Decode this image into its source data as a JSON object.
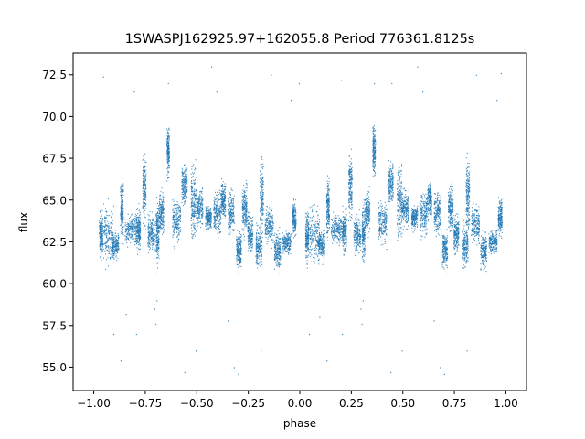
{
  "chart_data": {
    "type": "scatter",
    "title": "1SWASPJ162925.97+162055.8 Period 776361.8125s",
    "xlabel": "phase",
    "ylabel": "flux",
    "xlim": [
      -1.1,
      1.1
    ],
    "ylim": [
      53.6,
      73.8
    ],
    "x_ticks": [
      -1.0,
      -0.75,
      -0.5,
      -0.25,
      0.0,
      0.25,
      0.5,
      0.75,
      1.0
    ],
    "x_tick_labels": [
      "−1.00",
      "−0.75",
      "−0.50",
      "−0.25",
      "0.00",
      "0.25",
      "0.50",
      "0.75",
      "1.00"
    ],
    "y_ticks": [
      55.0,
      57.5,
      60.0,
      62.5,
      65.0,
      67.5,
      70.0,
      72.5
    ],
    "y_tick_labels": [
      "55.0",
      "57.5",
      "60.0",
      "62.5",
      "65.0",
      "67.5",
      "70.0",
      "72.5"
    ],
    "grid": false,
    "legend": "none",
    "color": "#1f77b4",
    "series": [
      {
        "segments": [
          {
            "x": [
              -0.975,
              -0.958
            ],
            "y": [
              60.8,
              65.0
            ]
          },
          {
            "x": [
              -0.955,
              -0.905
            ],
            "y": [
              60.5,
              65.5
            ]
          },
          {
            "x": [
              -0.915,
              -0.88
            ],
            "y": [
              61.2,
              63.5
            ]
          },
          {
            "x": [
              -0.872,
              -0.858
            ],
            "y": [
              62.0,
              67.0
            ]
          },
          {
            "x": [
              -0.85,
              -0.795
            ],
            "y": [
              62.0,
              64.5
            ]
          },
          {
            "x": [
              -0.795,
              -0.775
            ],
            "y": [
              61.5,
              65.0
            ]
          },
          {
            "x": [
              -0.765,
              -0.748
            ],
            "y": [
              63.0,
              68.5
            ]
          },
          {
            "x": [
              -0.74,
              -0.705
            ],
            "y": [
              61.5,
              64.5
            ]
          },
          {
            "x": [
              -0.7,
              -0.685
            ],
            "y": [
              60.5,
              65.5
            ]
          },
          {
            "x": [
              -0.685,
              -0.662
            ],
            "y": [
              62.5,
              66.0
            ]
          },
          {
            "x": [
              -0.648,
              -0.635
            ],
            "y": [
              66.0,
              70.0
            ]
          },
          {
            "x": [
              -0.62,
              -0.58
            ],
            "y": [
              62.0,
              65.5
            ]
          },
          {
            "x": [
              -0.575,
              -0.548
            ],
            "y": [
              64.5,
              67.5
            ]
          },
          {
            "x": [
              -0.53,
              -0.505
            ],
            "y": [
              62.0,
              68.0
            ]
          },
          {
            "x": [
              -0.505,
              -0.472
            ],
            "y": [
              63.0,
              66.0
            ]
          },
          {
            "x": [
              -0.46,
              -0.43
            ],
            "y": [
              63.0,
              65.0
            ]
          },
          {
            "x": [
              -0.42,
              -0.385
            ],
            "y": [
              62.5,
              66.0
            ]
          },
          {
            "x": [
              -0.385,
              -0.362
            ],
            "y": [
              63.5,
              66.5
            ]
          },
          {
            "x": [
              -0.35,
              -0.32
            ],
            "y": [
              62.5,
              66.0
            ]
          },
          {
            "x": [
              -0.31,
              -0.285
            ],
            "y": [
              60.5,
              63.5
            ]
          },
          {
            "x": [
              -0.282,
              -0.258
            ],
            "y": [
              62.5,
              66.5
            ]
          },
          {
            "x": [
              -0.255,
              -0.23
            ],
            "y": [
              61.5,
              64.5
            ]
          },
          {
            "x": [
              -0.215,
              -0.185
            ],
            "y": [
              60.5,
              64.0
            ]
          },
          {
            "x": [
              -0.195,
              -0.178
            ],
            "y": [
              62.0,
              68.5
            ]
          },
          {
            "x": [
              -0.17,
              -0.13
            ],
            "y": [
              62.0,
              65.0
            ]
          },
          {
            "x": [
              -0.125,
              -0.095
            ],
            "y": [
              60.5,
              63.5
            ]
          },
          {
            "x": [
              -0.085,
              -0.045
            ],
            "y": [
              61.5,
              63.5
            ]
          },
          {
            "x": [
              -0.04,
              -0.02
            ],
            "y": [
              62.5,
              65.5
            ]
          },
          {
            "x": [
              0.025,
              0.042
            ],
            "y": [
              60.8,
              65.0
            ]
          },
          {
            "x": [
              0.045,
              0.095
            ],
            "y": [
              60.5,
              65.5
            ]
          },
          {
            "x": [
              0.085,
              0.12
            ],
            "y": [
              61.2,
              63.5
            ]
          },
          {
            "x": [
              0.128,
              0.142
            ],
            "y": [
              62.0,
              67.0
            ]
          },
          {
            "x": [
              0.15,
              0.205
            ],
            "y": [
              62.0,
              64.5
            ]
          },
          {
            "x": [
              0.205,
              0.225
            ],
            "y": [
              61.5,
              65.0
            ]
          },
          {
            "x": [
              0.235,
              0.252
            ],
            "y": [
              63.0,
              68.5
            ]
          },
          {
            "x": [
              0.26,
              0.295
            ],
            "y": [
              61.5,
              64.5
            ]
          },
          {
            "x": [
              0.3,
              0.315
            ],
            "y": [
              60.5,
              65.5
            ]
          },
          {
            "x": [
              0.315,
              0.338
            ],
            "y": [
              62.5,
              66.0
            ]
          },
          {
            "x": [
              0.352,
              0.365
            ],
            "y": [
              66.0,
              70.0
            ]
          },
          {
            "x": [
              0.38,
              0.42
            ],
            "y": [
              62.0,
              65.5
            ]
          },
          {
            "x": [
              0.425,
              0.452
            ],
            "y": [
              64.5,
              67.5
            ]
          },
          {
            "x": [
              0.47,
              0.495
            ],
            "y": [
              62.0,
              68.0
            ]
          },
          {
            "x": [
              0.495,
              0.528
            ],
            "y": [
              63.0,
              66.0
            ]
          },
          {
            "x": [
              0.54,
              0.57
            ],
            "y": [
              63.0,
              65.0
            ]
          },
          {
            "x": [
              0.58,
              0.615
            ],
            "y": [
              62.5,
              66.0
            ]
          },
          {
            "x": [
              0.615,
              0.638
            ],
            "y": [
              63.5,
              66.5
            ]
          },
          {
            "x": [
              0.65,
              0.68
            ],
            "y": [
              62.5,
              66.0
            ]
          },
          {
            "x": [
              0.69,
              0.715
            ],
            "y": [
              60.5,
              63.5
            ]
          },
          {
            "x": [
              0.718,
              0.742
            ],
            "y": [
              62.5,
              66.5
            ]
          },
          {
            "x": [
              0.745,
              0.77
            ],
            "y": [
              61.5,
              64.5
            ]
          },
          {
            "x": [
              0.785,
              0.815
            ],
            "y": [
              60.5,
              64.0
            ]
          },
          {
            "x": [
              0.805,
              0.822
            ],
            "y": [
              62.0,
              68.5
            ]
          },
          {
            "x": [
              0.83,
              0.87
            ],
            "y": [
              62.0,
              65.0
            ]
          },
          {
            "x": [
              0.875,
              0.905
            ],
            "y": [
              60.5,
              63.5
            ]
          },
          {
            "x": [
              0.915,
              0.955
            ],
            "y": [
              61.5,
              63.5
            ]
          },
          {
            "x": [
              0.96,
              0.98
            ],
            "y": [
              62.5,
              65.5
            ]
          }
        ],
        "points": [
          {
            "x": -0.955,
            "y": 72.4
          },
          {
            "x": -0.905,
            "y": 57.0
          },
          {
            "x": -0.845,
            "y": 58.2
          },
          {
            "x": -0.805,
            "y": 71.5
          },
          {
            "x": -0.795,
            "y": 57.0
          },
          {
            "x": -0.705,
            "y": 58.5
          },
          {
            "x": -0.7,
            "y": 57.6
          },
          {
            "x": -0.695,
            "y": 59.0
          },
          {
            "x": -0.64,
            "y": 72.0
          },
          {
            "x": -0.555,
            "y": 72.0
          },
          {
            "x": -0.505,
            "y": 56.0
          },
          {
            "x": -0.43,
            "y": 73.0
          },
          {
            "x": -0.405,
            "y": 71.5
          },
          {
            "x": -0.35,
            "y": 57.8
          },
          {
            "x": -0.32,
            "y": 55.0
          },
          {
            "x": -0.19,
            "y": 56.0
          },
          {
            "x": -0.14,
            "y": 72.5
          },
          {
            "x": -0.045,
            "y": 71.0
          },
          {
            "x": -0.005,
            "y": 72.0
          },
          {
            "x": 0.045,
            "y": 57.0
          },
          {
            "x": 0.095,
            "y": 58.0
          },
          {
            "x": 0.2,
            "y": 72.2
          },
          {
            "x": 0.205,
            "y": 57.0
          },
          {
            "x": 0.295,
            "y": 58.5
          },
          {
            "x": 0.3,
            "y": 57.6
          },
          {
            "x": 0.305,
            "y": 59.0
          },
          {
            "x": 0.36,
            "y": 72.0
          },
          {
            "x": 0.445,
            "y": 72.0
          },
          {
            "x": 0.495,
            "y": 56.0
          },
          {
            "x": 0.57,
            "y": 73.0
          },
          {
            "x": 0.595,
            "y": 71.5
          },
          {
            "x": 0.65,
            "y": 57.8
          },
          {
            "x": 0.68,
            "y": 55.0
          },
          {
            "x": 0.81,
            "y": 56.0
          },
          {
            "x": 0.855,
            "y": 72.5
          },
          {
            "x": 0.955,
            "y": 71.0
          },
          {
            "x": 0.975,
            "y": 72.6
          },
          {
            "x": -0.87,
            "y": 55.4
          },
          {
            "x": 0.13,
            "y": 55.4
          },
          {
            "x": -0.3,
            "y": 54.6
          },
          {
            "x": 0.7,
            "y": 54.6
          },
          {
            "x": -0.56,
            "y": 54.7
          },
          {
            "x": 0.44,
            "y": 54.7
          }
        ]
      }
    ]
  }
}
